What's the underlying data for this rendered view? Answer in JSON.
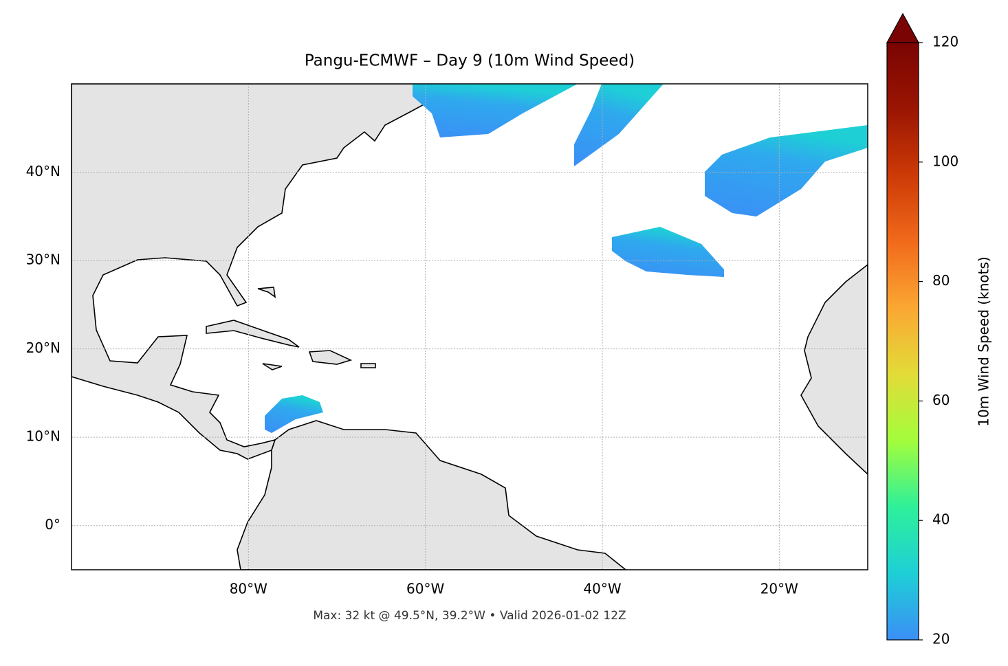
{
  "chart_data": {
    "type": "map",
    "title": "Pangu-ECMWF – Day 9 (10m Wind Speed)",
    "subtitle": "Max: 32 kt @ 49.5°N, 39.2°W • Valid 2026-01-02 12Z",
    "xlim": [
      -100,
      -10
    ],
    "ylim": [
      -5,
      50
    ],
    "xticks": [
      {
        "value": -80,
        "label": "80°W"
      },
      {
        "value": -60,
        "label": "60°W"
      },
      {
        "value": -40,
        "label": "40°W"
      },
      {
        "value": -20,
        "label": "20°W"
      }
    ],
    "yticks": [
      {
        "value": 0,
        "label": "0°"
      },
      {
        "value": 10,
        "label": "10°N"
      },
      {
        "value": 20,
        "label": "20°N"
      },
      {
        "value": 30,
        "label": "30°N"
      },
      {
        "value": 40,
        "label": "40°N"
      }
    ],
    "grid": true,
    "land_color": "#e4e4e4",
    "colorbar": {
      "label": "10m Wind Speed (knots)",
      "lim": [
        20,
        120
      ],
      "ticks": [
        20,
        40,
        60,
        80,
        100,
        120
      ],
      "colors": [
        "#3b8ff6",
        "#1ecfd6",
        "#2ef09a",
        "#a3fd3c",
        "#e2dc38",
        "#fba733",
        "#f16a1b",
        "#cc3a06",
        "#9a1502",
        "#7a0403"
      ]
    }
  }
}
